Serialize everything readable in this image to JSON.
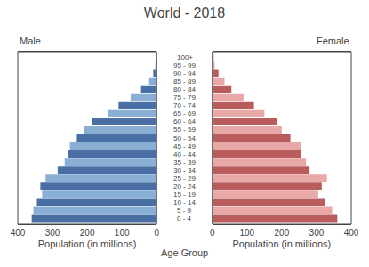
{
  "chart_data": {
    "type": "bar",
    "orientation": "horizontal",
    "title": "World - 2018",
    "ylabel": "Age Group",
    "categories": [
      "0 - 4",
      "5 - 9",
      "10 - 14",
      "15 - 19",
      "20 - 24",
      "25 - 29",
      "30 - 34",
      "35 - 39",
      "40 - 44",
      "45 - 49",
      "50 - 54",
      "55 - 59",
      "60 - 64",
      "65 - 69",
      "70 - 74",
      "75 - 79",
      "80 - 84",
      "85 - 89",
      "90 - 94",
      "95 - 99",
      "100+"
    ],
    "grid": false,
    "series": [
      {
        "name": "Male",
        "xlabel": "Population (in millions)",
        "xlim": [
          400,
          0
        ],
        "xticks": [
          0,
          100,
          200,
          300,
          400
        ],
        "values": [
          360,
          355,
          345,
          330,
          335,
          320,
          285,
          265,
          255,
          250,
          230,
          210,
          185,
          140,
          110,
          75,
          45,
          22,
          10,
          4,
          2
        ],
        "colors": [
          "#4a6fa5",
          "#8aafd4",
          "#4a6fa5",
          "#8aafd4",
          "#4a6fa5",
          "#8aafd4",
          "#4a6fa5",
          "#8aafd4",
          "#4a6fa5",
          "#8aafd4",
          "#4a6fa5",
          "#8aafd4",
          "#4a6fa5",
          "#8aafd4",
          "#4a6fa5",
          "#8aafd4",
          "#4a6fa5",
          "#8aafd4",
          "#4a6fa5",
          "#8aafd4",
          "#4a6fa5"
        ]
      },
      {
        "name": "Female",
        "xlabel": "Population (in millions)",
        "xlim": [
          0,
          400
        ],
        "xticks": [
          0,
          100,
          200,
          300,
          400
        ],
        "values": [
          360,
          345,
          325,
          305,
          315,
          330,
          280,
          270,
          255,
          255,
          225,
          200,
          185,
          150,
          120,
          90,
          55,
          35,
          18,
          7,
          4
        ],
        "colors": [
          "#b85c5c",
          "#e8a8a8",
          "#b85c5c",
          "#e8a8a8",
          "#b85c5c",
          "#e8a8a8",
          "#b85c5c",
          "#e8a8a8",
          "#b85c5c",
          "#e8a8a8",
          "#b85c5c",
          "#e8a8a8",
          "#b85c5c",
          "#e8a8a8",
          "#b85c5c",
          "#e8a8a8",
          "#b85c5c",
          "#e8a8a8",
          "#b85c5c",
          "#e8a8a8",
          "#b85c5c"
        ]
      }
    ]
  }
}
